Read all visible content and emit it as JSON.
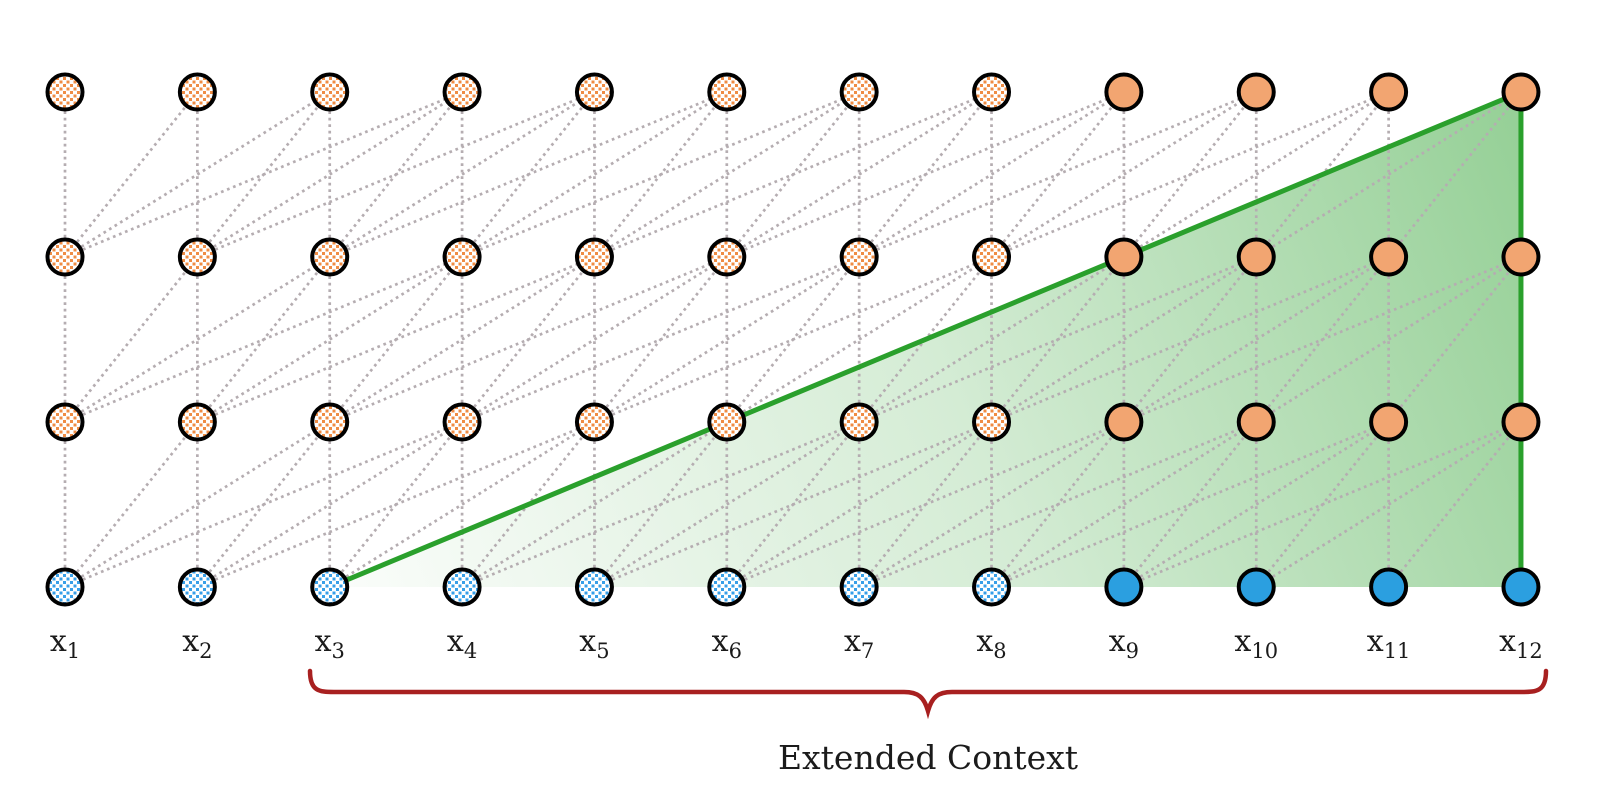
{
  "diagram": {
    "caption": "Extended Context",
    "num_layers": 4,
    "tokens_per_row": 12,
    "attention_window": 4,
    "context": {
      "start_token": "x3",
      "end_token": "x12"
    },
    "columns": [
      {
        "base": "x",
        "sub": "1",
        "style": "hatched",
        "in_context": false
      },
      {
        "base": "x",
        "sub": "2",
        "style": "hatched",
        "in_context": false
      },
      {
        "base": "x",
        "sub": "3",
        "style": "hatched",
        "in_context": true
      },
      {
        "base": "x",
        "sub": "4",
        "style": "hatched",
        "in_context": true
      },
      {
        "base": "x",
        "sub": "5",
        "style": "hatched",
        "in_context": true
      },
      {
        "base": "x",
        "sub": "6",
        "style": "hatched",
        "in_context": true
      },
      {
        "base": "x",
        "sub": "7",
        "style": "hatched",
        "in_context": true
      },
      {
        "base": "x",
        "sub": "8",
        "style": "hatched",
        "in_context": true
      },
      {
        "base": "x",
        "sub": "9",
        "style": "solid",
        "in_context": true
      },
      {
        "base": "x",
        "sub": "10",
        "style": "solid",
        "in_context": true
      },
      {
        "base": "x",
        "sub": "11",
        "style": "solid",
        "in_context": true
      },
      {
        "base": "x",
        "sub": "12",
        "style": "solid",
        "in_context": true
      }
    ],
    "colors": {
      "background": "#ffffff",
      "node_border": "#000000",
      "solid_blue": "#2b9fe0",
      "hatch_blue": "#379fe8",
      "solid_orange": "#f2a571",
      "hatch_orange": "#ef8c44",
      "edge_gray": "#b5adb1",
      "context_green": "#2aa02c",
      "brace_red": "#a82020",
      "text": "#1b1b1b"
    }
  }
}
